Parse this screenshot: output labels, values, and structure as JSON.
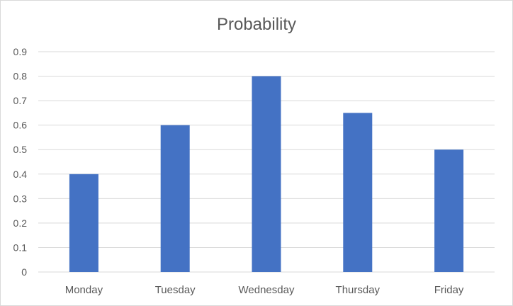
{
  "chart_data": {
    "type": "bar",
    "title": "Probability",
    "xlabel": "",
    "ylabel": "",
    "categories": [
      "Monday",
      "Tuesday",
      "Wednesday",
      "Thursday",
      "Friday"
    ],
    "values": [
      0.4,
      0.6,
      0.8,
      0.65,
      0.5
    ],
    "ylim": [
      0,
      0.9
    ],
    "yticks": [
      "0",
      "0.1",
      "0.2",
      "0.3",
      "0.4",
      "0.5",
      "0.6",
      "0.7",
      "0.8",
      "0.9"
    ],
    "grid": true,
    "legend": "none",
    "colors": {
      "bar": "#4472C4",
      "grid": "#D9D9D9",
      "text": "#595959"
    }
  }
}
